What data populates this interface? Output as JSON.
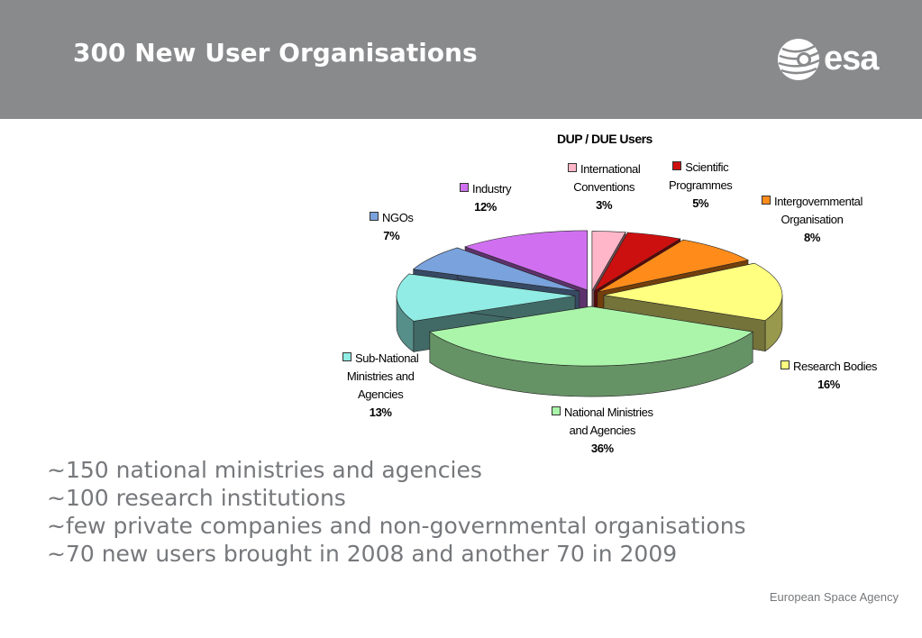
{
  "slide": {
    "title": "300 New User Organisations"
  },
  "logo": {
    "text": "esa"
  },
  "footer": {
    "agency": "European Space Agency"
  },
  "bullets": [
    "~150 national ministries and agencies",
    "~100 research institutions",
    "~few private companies and non-governmental organisations",
    "~70 new users brought in 2008 and another 70 in 2009"
  ],
  "chart_data": {
    "type": "pie",
    "title": "DUP / DUE Users",
    "style": "3d-exploded",
    "series": [
      {
        "name": "International Conventions",
        "value": 3,
        "label": "3%",
        "color": "#ffb6c8"
      },
      {
        "name": "Scientific Programmes",
        "value": 5,
        "label": "5%",
        "color": "#cc1010"
      },
      {
        "name": "Intergovernmental Organisation",
        "value": 8,
        "label": "8%",
        "color": "#ff8c1a"
      },
      {
        "name": "Research Bodies",
        "value": 16,
        "label": "16%",
        "color": "#ffff80"
      },
      {
        "name": "National Ministries and Agencies",
        "value": 36,
        "label": "36%",
        "color": "#aaf5aa"
      },
      {
        "name": "Sub-National Ministries and Agencies",
        "value": 13,
        "label": "13%",
        "color": "#90ece4"
      },
      {
        "name": "NGOs",
        "value": 7,
        "label": "7%",
        "color": "#7aa2dc"
      },
      {
        "name": "Industry",
        "value": 12,
        "label": "12%",
        "color": "#d070f0"
      }
    ],
    "legend_lines": [
      [
        "International",
        "Conventions"
      ],
      [
        "Scientific",
        "Programmes"
      ],
      [
        "Intergovernmental",
        "Organisation"
      ],
      [
        "Research Bodies"
      ],
      [
        "National Ministries",
        "and Agencies"
      ],
      [
        "Sub-National",
        "Ministries and",
        "Agencies"
      ],
      [
        "NGOs"
      ],
      [
        "Industry"
      ]
    ]
  }
}
